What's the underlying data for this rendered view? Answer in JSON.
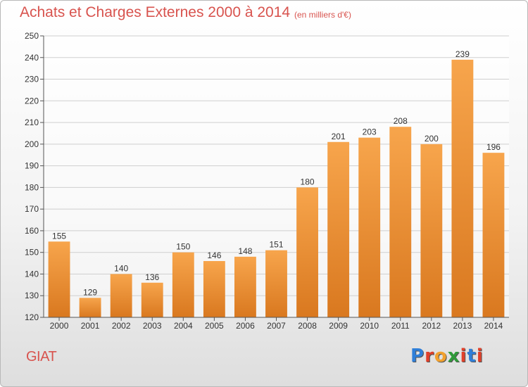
{
  "header": {
    "title": "Achats et Charges Externes 2000 à 2014",
    "unit": "(en milliers d'€)"
  },
  "footer": {
    "commune": "GIAT",
    "logo": "Proxiti",
    "logo_letters": [
      "P",
      "r",
      "o",
      "x",
      "i",
      "t",
      "i"
    ],
    "logo_colors": [
      "#2f7fd8",
      "#e0402a",
      "#f2a12e",
      "#2f9a3a",
      "#e0402a",
      "#2f7fd8",
      "#e0402a"
    ]
  },
  "chart_data": {
    "type": "bar",
    "categories": [
      "2000",
      "2001",
      "2002",
      "2003",
      "2004",
      "2005",
      "2006",
      "2007",
      "2008",
      "2009",
      "2010",
      "2011",
      "2012",
      "2013",
      "2014"
    ],
    "values": [
      155,
      129,
      140,
      136,
      150,
      146,
      148,
      151,
      180,
      201,
      203,
      208,
      200,
      239,
      196
    ],
    "data_labels": [
      "155",
      "129",
      "140",
      "136",
      "150",
      "146",
      "148",
      "151",
      "180",
      "201",
      "203",
      "208",
      "200",
      "239",
      "196"
    ],
    "y_ticks": [
      120,
      130,
      140,
      150,
      160,
      170,
      180,
      190,
      200,
      210,
      220,
      230,
      240,
      250
    ],
    "ylim": [
      120,
      250
    ],
    "grid": true,
    "bar_color_top": "#f7a54c",
    "bar_color_bottom": "#d9781f",
    "grid_color": "#cfcfcf"
  }
}
